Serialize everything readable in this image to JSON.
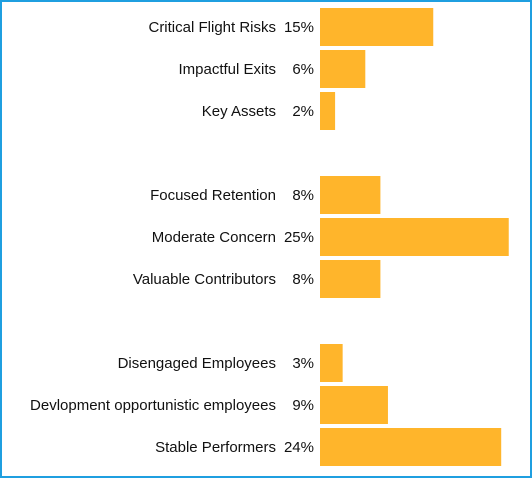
{
  "chart_data": {
    "type": "bar",
    "orientation": "horizontal",
    "bar_color": "#ffb52b",
    "frame_color": "#1f9fe0",
    "groups": [
      {
        "items": [
          {
            "label": "Critical Flight Risks",
            "value": 15,
            "value_label": "15%"
          },
          {
            "label": "Impactful Exits",
            "value": 6,
            "value_label": "6%"
          },
          {
            "label": "Key Assets",
            "value": 2,
            "value_label": "2%"
          }
        ]
      },
      {
        "items": [
          {
            "label": "Focused Retention",
            "value": 8,
            "value_label": "8%"
          },
          {
            "label": "Moderate Concern",
            "value": 25,
            "value_label": "25%"
          },
          {
            "label": "Valuable Contributors",
            "value": 8,
            "value_label": "8%"
          }
        ]
      },
      {
        "items": [
          {
            "label": "Disengaged Employees",
            "value": 3,
            "value_label": "3%"
          },
          {
            "label": "Devlopment opportunistic employees",
            "value": 9,
            "value_label": "9%"
          },
          {
            "label": "Stable Performers",
            "value": 24,
            "value_label": "24%"
          }
        ]
      }
    ]
  }
}
